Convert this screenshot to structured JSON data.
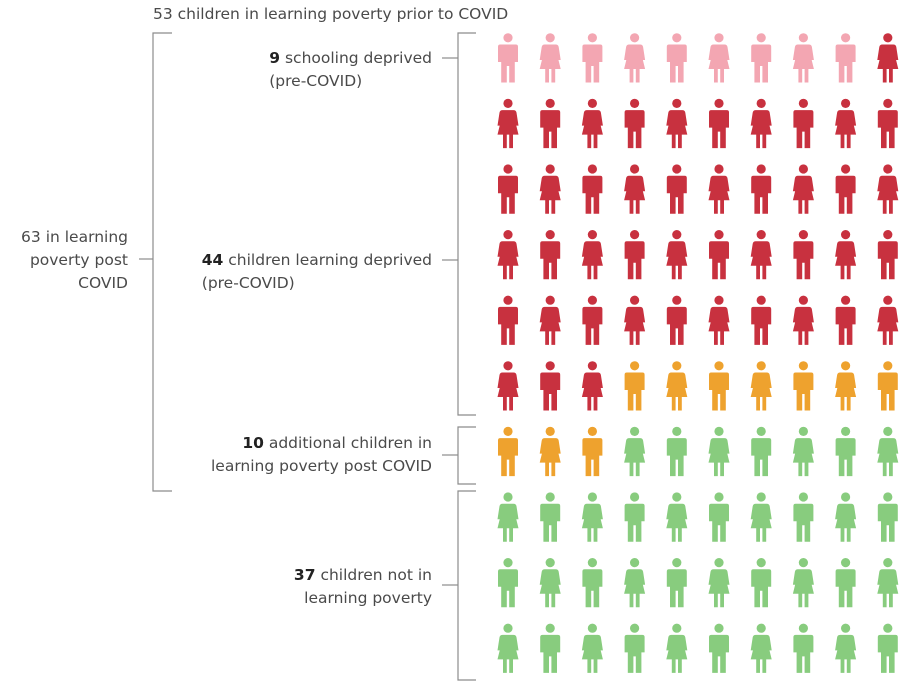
{
  "top_caption": "53 children in learning poverty prior to COVID",
  "left_caption": {
    "line1": "63 in learning",
    "line2": "poverty post",
    "line3": "COVID"
  },
  "segments": [
    {
      "id": "schooling",
      "count": "9",
      "line1": "schooling deprived",
      "line2": "(pre-COVID)",
      "figures": 9,
      "color": "#f3a6b2"
    },
    {
      "id": "learning",
      "count": "44",
      "line1": "children learning deprived",
      "line2": "(pre-COVID)",
      "figures": 44,
      "color": "#c8313f"
    },
    {
      "id": "additional",
      "count": "10",
      "line1": "additional children in",
      "line2": "learning poverty post COVID",
      "figures": 10,
      "color": "#eea22e"
    },
    {
      "id": "not-poverty",
      "count": "37",
      "line1": "children not in",
      "line2": "learning poverty",
      "figures": 37,
      "color": "#88cc7e"
    }
  ],
  "grid": {
    "columns": 10,
    "rows": 10,
    "total": 100,
    "pattern_note": "alternating boy/girl pictograms"
  },
  "colors": {
    "bracket": "#8c8c8c",
    "text": "#4a4a4a"
  }
}
